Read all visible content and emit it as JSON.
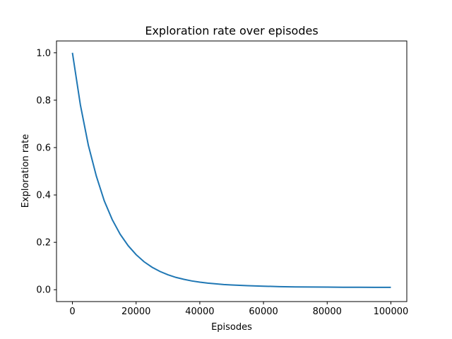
{
  "chart_data": {
    "type": "line",
    "title": "Exploration rate over episodes",
    "xlabel": "Episodes",
    "ylabel": "Exploration rate",
    "xlim": [
      -5000,
      105000
    ],
    "ylim": [
      -0.05,
      1.05
    ],
    "xticks": [
      0,
      20000,
      40000,
      60000,
      80000,
      100000
    ],
    "xtick_labels": [
      "0",
      "20000",
      "40000",
      "60000",
      "80000",
      "100000"
    ],
    "yticks": [
      0.0,
      0.2,
      0.4,
      0.6,
      0.8,
      1.0
    ],
    "ytick_labels": [
      "0.0",
      "0.2",
      "0.4",
      "0.6",
      "0.8",
      "1.0"
    ],
    "grid": false,
    "color": "#1f77b4",
    "series": [
      {
        "x": [
          0,
          2500,
          5000,
          7500,
          10000,
          12500,
          15000,
          17500,
          20000,
          22500,
          25000,
          27500,
          30000,
          32500,
          35000,
          37500,
          40000,
          42500,
          45000,
          47500,
          50000,
          55000,
          60000,
          65000,
          70000,
          75000,
          80000,
          85000,
          90000,
          95000,
          100000
        ],
        "y": [
          1.0,
          0.78,
          0.61,
          0.48,
          0.375,
          0.296,
          0.234,
          0.186,
          0.148,
          0.118,
          0.095,
          0.077,
          0.063,
          0.052,
          0.044,
          0.037,
          0.032,
          0.028,
          0.025,
          0.022,
          0.02,
          0.017,
          0.015,
          0.013,
          0.012,
          0.0115,
          0.011,
          0.0105,
          0.0102,
          0.0101,
          0.01
        ]
      }
    ]
  }
}
